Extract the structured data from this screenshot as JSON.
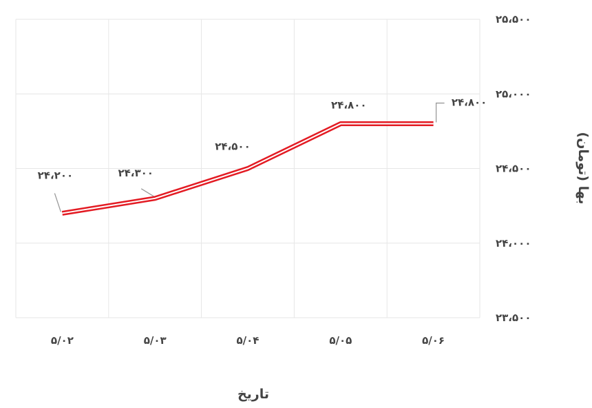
{
  "chart_data": {
    "type": "line",
    "categories": [
      "۵/۰۲",
      "۵/۰۳",
      "۵/۰۴",
      "۵/۰۵",
      "۵/۰۶"
    ],
    "series": [
      {
        "values": [
          24200,
          24300,
          24500,
          24800,
          24800
        ]
      }
    ],
    "data_labels": [
      "۲۴،۲۰۰",
      "۲۴،۳۰۰",
      "۲۴،۵۰۰",
      "۲۴،۸۰۰",
      "۲۴،۸۰۰"
    ],
    "y_ticks": [
      {
        "value": 23500,
        "label": "۲۳،۵۰۰"
      },
      {
        "value": 24000,
        "label": "۲۴،۰۰۰"
      },
      {
        "value": 24500,
        "label": "۲۴،۵۰۰"
      },
      {
        "value": 25000,
        "label": "۲۵،۰۰۰"
      },
      {
        "value": 25500,
        "label": "۲۵،۵۰۰"
      }
    ],
    "ylim": [
      23500,
      25500
    ],
    "xlabel": "تاریخ",
    "ylabel": "بها (تومان)",
    "y_axis_position": "right",
    "grid": true,
    "legend": "none",
    "colors": {
      "line": "#e31b23",
      "grid": "#e6e6e6",
      "text": "#444444",
      "leader": "#999999"
    }
  }
}
